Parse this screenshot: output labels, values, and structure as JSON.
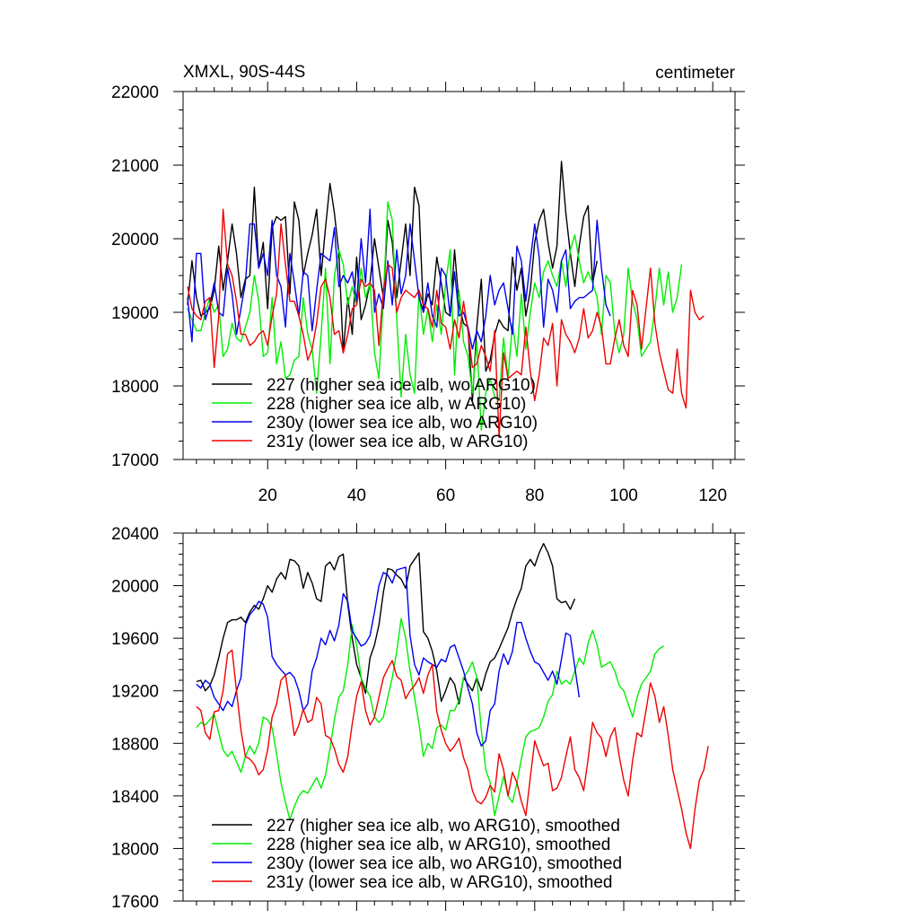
{
  "header": {
    "title": "XMXL, 90S-44S",
    "units": "centimeter"
  },
  "colors": {
    "s227": "#000000",
    "s228": "#00ee00",
    "s230y": "#0000ee",
    "s231y": "#ee0000",
    "axis": "#000000"
  },
  "chart_data": [
    {
      "type": "line",
      "title": "XMXL, 90S-44S",
      "units_label": "centimeter",
      "xlim": [
        1,
        125
      ],
      "ylim": [
        17000,
        22000
      ],
      "xticks": [
        20,
        40,
        60,
        80,
        100,
        120
      ],
      "xtick_labels": [
        "20",
        "40",
        "60",
        "80",
        "100",
        "120"
      ],
      "yticks": [
        17000,
        18000,
        19000,
        20000,
        21000,
        22000
      ],
      "ytick_labels": [
        "17000",
        "18000",
        "19000",
        "20000",
        "21000",
        "22000"
      ],
      "legend_position": "bottom-left",
      "series": [
        {
          "name": "227 (higher sea ice alb, wo ARG10)",
          "color_key": "s227",
          "x_start": 2,
          "values": [
            19100,
            19700,
            19200,
            18950,
            19000,
            19050,
            19300,
            19900,
            19300,
            19700,
            20200,
            19800,
            19200,
            19450,
            19500,
            20700,
            19600,
            19950,
            19050,
            20150,
            20300,
            20250,
            20300,
            19250,
            20500,
            20250,
            19500,
            19800,
            20050,
            20400,
            19500,
            20150,
            20750,
            20350,
            19800,
            18450,
            19200,
            18700,
            19750,
            18900,
            19100,
            19400,
            20000,
            19600,
            19200,
            20250,
            19950,
            19200,
            19700,
            20200,
            19500,
            20700,
            20450,
            19000,
            19250,
            19100,
            19750,
            19400,
            19000,
            18950,
            19850,
            19100,
            18850,
            18800,
            17800,
            18800,
            19450,
            18200,
            18350,
            18700,
            18900,
            18800,
            18750,
            19750,
            19300,
            19600,
            18950,
            19300,
            19950,
            20250,
            20400,
            19950,
            19600,
            19900,
            21050,
            20350,
            19800,
            19350,
            19900,
            20300,
            20450,
            19400,
            19700
          ]
        },
        {
          "name": "228 (higher sea ice alb, w ARG10)",
          "color_key": "s228",
          "x_start": 2,
          "values": [
            19050,
            18900,
            18750,
            18750,
            19000,
            19200,
            19000,
            19100,
            18400,
            18500,
            18850,
            18650,
            18600,
            18800,
            19000,
            19500,
            19150,
            18400,
            18450,
            19200,
            18300,
            18600,
            18100,
            18150,
            18350,
            18400,
            19200,
            18700,
            18500,
            17900,
            18700,
            19600,
            18300,
            19500,
            19850,
            19650,
            19100,
            19350,
            19100,
            19600,
            19200,
            19400,
            18450,
            18100,
            19200,
            20500,
            20250,
            18900,
            17850,
            18700,
            18150,
            17900,
            19300,
            18700,
            19050,
            18600,
            19100,
            18700,
            19400,
            19850,
            18150,
            19300,
            18600,
            18400,
            17900,
            18600,
            17400,
            17900,
            18100,
            17850,
            17800,
            18650,
            18100,
            18850,
            18400,
            19250,
            18500,
            19000,
            19400,
            19200,
            19550,
            19700,
            19500,
            19350,
            19700,
            19350,
            19850,
            20050,
            19700,
            19400,
            19550,
            19400,
            19200,
            18700,
            19500,
            19400,
            18700,
            18450,
            18700,
            19600,
            19150,
            18900,
            18400,
            18500,
            18600,
            19050,
            19600,
            19100,
            19550,
            19000,
            19200,
            19650
          ]
        },
        {
          "name": "230y (lower sea ice alb, wo ARG10)",
          "color_key": "s230y",
          "x_start": 2,
          "values": [
            19200,
            18600,
            19800,
            19800,
            18900,
            19100,
            19400,
            19000,
            18950,
            19600,
            19250,
            18700,
            19050,
            19400,
            20200,
            20200,
            19600,
            19800,
            19500,
            20250,
            19500,
            19350,
            18800,
            19800,
            19400,
            18950,
            19550,
            19500,
            18750,
            19300,
            19800,
            19750,
            19700,
            20150,
            19350,
            19500,
            19400,
            19550,
            19150,
            20000,
            19400,
            20400,
            19000,
            19250,
            19050,
            19700,
            19100,
            19850,
            19250,
            19500,
            20200,
            19700,
            19200,
            19000,
            19400,
            18950,
            18800,
            19600,
            19500,
            18950,
            19550,
            18950,
            19000,
            18800,
            18500,
            18750,
            18600,
            18950,
            19500,
            19100,
            19300,
            19400,
            19050,
            18700,
            19900,
            19700,
            19150,
            19700,
            20200,
            19750,
            18800,
            19450,
            19300,
            19000,
            19700,
            19850,
            19050,
            19150,
            19200,
            19200,
            19250,
            19300,
            20250,
            19600,
            19100,
            18950
          ]
        },
        {
          "name": "231y (lower sea ice alb, w ARG10)",
          "color_key": "s231y",
          "x_start": 2,
          "values": [
            19350,
            19050,
            18950,
            18900,
            19150,
            19200,
            18250,
            18950,
            20400,
            19650,
            19500,
            19150,
            18700,
            18700,
            18550,
            18600,
            18700,
            18750,
            18550,
            18950,
            19250,
            20200,
            19650,
            19150,
            19150,
            18950,
            18700,
            18350,
            18500,
            18850,
            19350,
            19450,
            19200,
            18700,
            18750,
            18450,
            18700,
            19050,
            19100,
            19450,
            19350,
            19400,
            19300,
            18550,
            19300,
            19650,
            19600,
            19000,
            19200,
            19300,
            19250,
            19200,
            19300,
            19100,
            19050,
            18800,
            19300,
            18850,
            18800,
            18500,
            18900,
            18650,
            19150,
            18750,
            18250,
            18300,
            18550,
            18400,
            18200,
            18750,
            17300,
            18450,
            18100,
            18150,
            18200,
            18150,
            18800,
            18200,
            17800,
            18150,
            18650,
            18550,
            18850,
            18000,
            18900,
            18700,
            18600,
            18450,
            18650,
            19050,
            18650,
            18750,
            19000,
            18800,
            18300,
            18300,
            18650,
            18900,
            18550,
            18400,
            19300,
            19100,
            18500,
            19050,
            19600,
            18850,
            18450,
            18200,
            17950,
            17900,
            18500,
            17900,
            17700,
            19300,
            19000,
            18900,
            18950
          ]
        }
      ]
    },
    {
      "type": "line",
      "xlim": [
        1,
        125
      ],
      "ylim": [
        17600,
        20400
      ],
      "yticks": [
        17600,
        18000,
        18400,
        18800,
        19200,
        19600,
        20000,
        20400
      ],
      "ytick_labels": [
        "17600",
        "18000",
        "18400",
        "18800",
        "19200",
        "19600",
        "20000",
        "20400"
      ],
      "xticks": [
        20,
        40,
        60,
        80,
        100,
        120
      ],
      "legend_position": "bottom-left",
      "series": [
        {
          "name": "227 (higher sea ice alb, wo ARG10), smoothed",
          "color_key": "s227",
          "x_start": 4,
          "values": [
            19270,
            19280,
            19200,
            19240,
            19320,
            19450,
            19600,
            19720,
            19740,
            19740,
            19760,
            19720,
            19800,
            19850,
            19820,
            19900,
            20000,
            19950,
            20050,
            20100,
            20050,
            20200,
            20190,
            20150,
            19980,
            20100,
            20020,
            19900,
            19880,
            20150,
            20180,
            20120,
            20220,
            20240,
            19860,
            19600,
            19400,
            19300,
            19180,
            19450,
            19550,
            19700,
            19950,
            20130,
            20120,
            20080,
            20050,
            19980,
            20150,
            20200,
            20250,
            19650,
            19600,
            19500,
            19350,
            19120,
            19200,
            19300,
            19250,
            19100,
            19300,
            19250,
            19200,
            19300,
            19200,
            19330,
            19420,
            19450,
            19520,
            19600,
            19680,
            19800,
            19900,
            19980,
            20150,
            20200,
            20150,
            20250,
            20320,
            20250,
            20150,
            19900,
            19870,
            19880,
            19820,
            19900
          ]
        },
        {
          "name": "228 (higher sea ice alb, w ARG10), smoothed",
          "color_key": "s228",
          "x_start": 4,
          "values": [
            18920,
            18960,
            18940,
            18980,
            19020,
            18880,
            18750,
            18700,
            18740,
            18660,
            18580,
            18700,
            18780,
            18720,
            18800,
            19000,
            18980,
            18920,
            18720,
            18500,
            18350,
            18220,
            18320,
            18400,
            18440,
            18420,
            18480,
            18540,
            18460,
            18560,
            18760,
            18980,
            19150,
            19200,
            19400,
            19700,
            19550,
            19300,
            19220,
            19160,
            19000,
            18960,
            19000,
            19150,
            19300,
            19500,
            19750,
            19600,
            19350,
            19150,
            18950,
            18700,
            18800,
            18760,
            18920,
            18940,
            18900,
            19050,
            19050,
            19130,
            19300,
            19350,
            19420,
            19300,
            18900,
            18600,
            18500,
            18250,
            18400,
            18550,
            18400,
            18350,
            18500,
            18680,
            18850,
            18890,
            18900,
            18920,
            19000,
            19120,
            19170,
            19350,
            19250,
            19280,
            19250,
            19350,
            19450,
            19400,
            19560,
            19660,
            19550,
            19380,
            19400,
            19420,
            19350,
            19240,
            19200,
            19100,
            19000,
            19150,
            19250,
            19300,
            19350,
            19480,
            19520,
            19540
          ]
        },
        {
          "name": "230y (lower sea ice alb, wo ARG10), smoothed",
          "color_key": "s230y",
          "x_start": 4,
          "values": [
            19250,
            19220,
            19280,
            19250,
            19150,
            19100,
            19050,
            19120,
            19080,
            19200,
            19300,
            19700,
            19780,
            19820,
            19880,
            19860,
            19760,
            19460,
            19400,
            19360,
            19320,
            19340,
            19300,
            19200,
            19050,
            19100,
            19350,
            19450,
            19600,
            19550,
            19660,
            19580,
            19700,
            19940,
            19880,
            19650,
            19600,
            19540,
            19560,
            19620,
            19800,
            20000,
            20100,
            20080,
            20020,
            20120,
            20130,
            20140,
            19620,
            19400,
            19320,
            19450,
            19420,
            19400,
            19380,
            19440,
            19420,
            19530,
            19550,
            19450,
            19350,
            19220,
            19100,
            18880,
            18780,
            18820,
            19050,
            19100,
            19350,
            19480,
            19400,
            19500,
            19720,
            19720,
            19600,
            19500,
            19420,
            19400,
            19340,
            19280,
            19350,
            19250,
            19440,
            19640,
            19620,
            19380,
            19150
          ]
        },
        {
          "name": "231y (lower sea ice alb, w ARG10), smoothed",
          "color_key": "s231y",
          "x_start": 4,
          "values": [
            19080,
            19050,
            18880,
            18830,
            19040,
            19050,
            19200,
            19480,
            19510,
            19200,
            18900,
            18700,
            18680,
            18640,
            18560,
            18600,
            18750,
            19000,
            19100,
            19280,
            19320,
            19100,
            18860,
            18940,
            19060,
            18960,
            18980,
            19150,
            19100,
            18860,
            18840,
            18760,
            18640,
            18580,
            18700,
            18950,
            19160,
            19270,
            19050,
            18940,
            19000,
            19150,
            19300,
            19370,
            19430,
            19310,
            19280,
            19140,
            19200,
            19240,
            19300,
            19180,
            19320,
            19400,
            19040,
            18900,
            18800,
            18740,
            18780,
            18840,
            18690,
            18600,
            18440,
            18360,
            18340,
            18390,
            18480,
            18430,
            18720,
            18600,
            18400,
            18580,
            18500,
            18360,
            18250,
            18540,
            18820,
            18720,
            18630,
            18650,
            18440,
            18460,
            18540,
            18700,
            18850,
            18600,
            18540,
            18440,
            18680,
            18960,
            18880,
            18840,
            18700,
            18850,
            18920,
            18700,
            18520,
            18400,
            18670,
            18880,
            18850,
            19050,
            19260,
            19160,
            18960,
            19080,
            18860,
            18600,
            18450,
            18300,
            18120,
            18000,
            18300,
            18520,
            18600,
            18780
          ]
        }
      ]
    }
  ]
}
